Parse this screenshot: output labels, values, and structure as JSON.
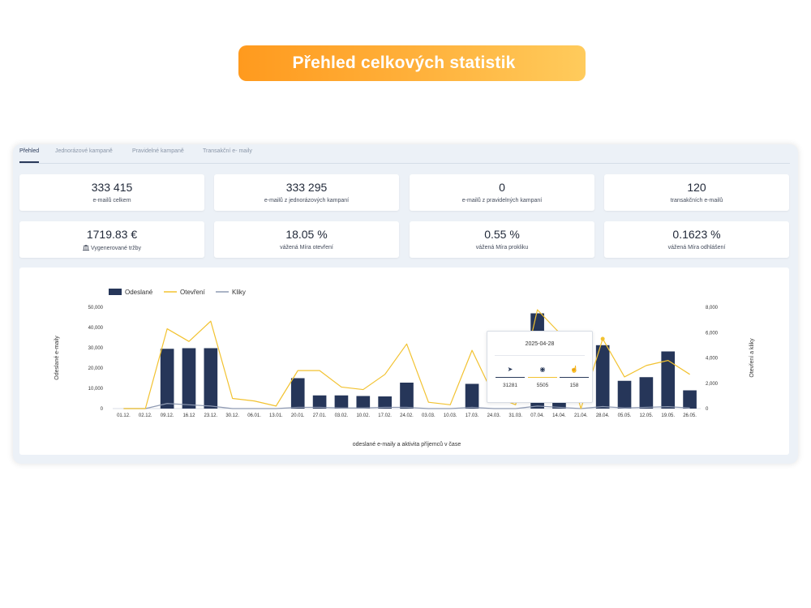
{
  "banner": {
    "title": "Přehled celkových statistik"
  },
  "tabs": [
    {
      "label": "Přehled"
    },
    {
      "label": "Jednorázové kampaně"
    },
    {
      "label": "Pravidelné kampaně"
    },
    {
      "label": "Transakční e- maily"
    }
  ],
  "stats": [
    {
      "value": "333 415",
      "label": "e-mailů celkem"
    },
    {
      "value": "333 295",
      "label": "e-mailů z jednorázových kampaní"
    },
    {
      "value": "0",
      "label": "e-mailů z pravidelných kampaní"
    },
    {
      "value": "120",
      "label": "transakčních e-mailů"
    },
    {
      "value": "1719.83 €",
      "label": "Vygenerované tržby",
      "icon": "bank-icon"
    },
    {
      "value": "18.05 %",
      "label": "vážená Míra otevření"
    },
    {
      "value": "0.55 %",
      "label": "vážená Míra prokliku"
    },
    {
      "value": "0.1623 %",
      "label": "vážená Míra odhlášení"
    }
  ],
  "tooltip": {
    "date": "2025-04-28",
    "items": [
      {
        "icon": "send-icon",
        "value": "31281",
        "color": "#2a3a5a"
      },
      {
        "icon": "eye-icon",
        "value": "5505",
        "color": "#f2c230"
      },
      {
        "icon": "click-icon",
        "value": "158",
        "color": "#2a3a5a"
      }
    ]
  },
  "chart_data": {
    "type": "bar",
    "xlabel": "odeslané e-maily a aktivita příjemců v čase",
    "ylabel": "Odeslané e-maily",
    "y2label": "Otevření a kliky",
    "ylim": [
      0,
      50000
    ],
    "y2lim": [
      0,
      8000
    ],
    "yticks": [
      "0",
      "10,000",
      "20,000",
      "30,000",
      "40,000",
      "50,000"
    ],
    "y2ticks": [
      "0",
      "2,000",
      "4,000",
      "6,000",
      "8,000"
    ],
    "legend_position": "top-left",
    "colors": {
      "bars": "#263659",
      "opens": "#f2c230",
      "clicks": "#8f9ab2"
    },
    "categories": [
      "01.12.",
      "02.12.",
      "09.12.",
      "16.12",
      "23.12.",
      "30.12.",
      "06.01.",
      "13.01.",
      "20.01.",
      "27.01.",
      "03.02.",
      "10.02.",
      "17.02.",
      "24.02.",
      "03.03.",
      "10.03.",
      "17.03.",
      "24.03.",
      "31.03.",
      "07.04.",
      "14.04.",
      "21.04.",
      "28.04.",
      "05.05.",
      "12.05.",
      "19.05.",
      "26.05."
    ],
    "series": [
      {
        "name": "Odeslané",
        "axis": "left",
        "type": "bar",
        "values": [
          0,
          0,
          29500,
          29800,
          29800,
          0,
          0,
          0,
          15000,
          6500,
          6500,
          6200,
          6000,
          12800,
          0,
          0,
          12200,
          0,
          0,
          47000,
          6000,
          0,
          31281,
          13700,
          15500,
          28200,
          9000
        ]
      },
      {
        "name": "Otevření",
        "axis": "right",
        "type": "line",
        "values": [
          0,
          0,
          6300,
          5300,
          6900,
          800,
          600,
          200,
          3000,
          3000,
          1700,
          1500,
          2700,
          5100,
          500,
          300,
          4600,
          1000,
          300,
          7800,
          6000,
          0,
          5505,
          2500,
          3400,
          3800,
          2700
        ]
      },
      {
        "name": "Kliky",
        "axis": "right",
        "type": "line",
        "values": [
          0,
          0,
          400,
          300,
          200,
          0,
          0,
          0,
          100,
          100,
          50,
          50,
          100,
          100,
          0,
          0,
          100,
          0,
          0,
          200,
          100,
          0,
          158,
          50,
          100,
          150,
          50
        ]
      }
    ]
  }
}
